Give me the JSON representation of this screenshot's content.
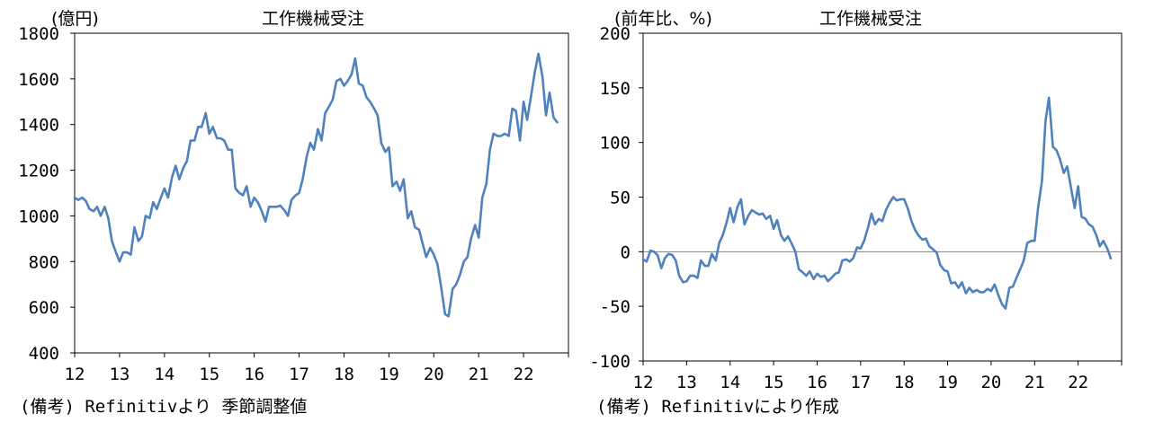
{
  "chart_data": [
    {
      "type": "line",
      "title": "工作機械受注",
      "ylabel": "(億円)",
      "ylim": [
        400,
        1800
      ],
      "yticks": [
        "400",
        "600",
        "800",
        "1000",
        "1200",
        "1400",
        "1600",
        "1800"
      ],
      "xlim": [
        12,
        23
      ],
      "xticks": [
        "12",
        "13",
        "14",
        "15",
        "16",
        "17",
        "18",
        "19",
        "20",
        "21",
        "22"
      ],
      "note": "(備考) Refinitivより 季節調整値",
      "color": "#4f81bd",
      "points": [
        [
          12.0,
          1080
        ],
        [
          12.08,
          1070
        ],
        [
          12.17,
          1080
        ],
        [
          12.25,
          1065
        ],
        [
          12.33,
          1030
        ],
        [
          12.42,
          1020
        ],
        [
          12.5,
          1040
        ],
        [
          12.58,
          1000
        ],
        [
          12.67,
          1040
        ],
        [
          12.75,
          990
        ],
        [
          12.83,
          890
        ],
        [
          12.92,
          840
        ],
        [
          13.0,
          800
        ],
        [
          13.08,
          840
        ],
        [
          13.17,
          840
        ],
        [
          13.25,
          830
        ],
        [
          13.33,
          950
        ],
        [
          13.42,
          890
        ],
        [
          13.5,
          910
        ],
        [
          13.58,
          1000
        ],
        [
          13.67,
          990
        ],
        [
          13.75,
          1060
        ],
        [
          13.83,
          1030
        ],
        [
          13.92,
          1080
        ],
        [
          14.0,
          1120
        ],
        [
          14.08,
          1080
        ],
        [
          14.17,
          1170
        ],
        [
          14.25,
          1220
        ],
        [
          14.33,
          1160
        ],
        [
          14.42,
          1210
        ],
        [
          14.5,
          1240
        ],
        [
          14.58,
          1330
        ],
        [
          14.67,
          1330
        ],
        [
          14.75,
          1390
        ],
        [
          14.83,
          1390
        ],
        [
          14.92,
          1450
        ],
        [
          15.0,
          1360
        ],
        [
          15.08,
          1390
        ],
        [
          15.17,
          1340
        ],
        [
          15.25,
          1340
        ],
        [
          15.33,
          1330
        ],
        [
          15.42,
          1290
        ],
        [
          15.5,
          1290
        ],
        [
          15.58,
          1120
        ],
        [
          15.67,
          1100
        ],
        [
          15.75,
          1090
        ],
        [
          15.83,
          1130
        ],
        [
          15.92,
          1040
        ],
        [
          16.0,
          1080
        ],
        [
          16.08,
          1060
        ],
        [
          16.17,
          1020
        ],
        [
          16.25,
          975
        ],
        [
          16.33,
          1040
        ],
        [
          16.42,
          1040
        ],
        [
          16.5,
          1040
        ],
        [
          16.58,
          1045
        ],
        [
          16.67,
          1025
        ],
        [
          16.75,
          1000
        ],
        [
          16.83,
          1070
        ],
        [
          16.92,
          1090
        ],
        [
          17.0,
          1100
        ],
        [
          17.08,
          1160
        ],
        [
          17.17,
          1260
        ],
        [
          17.25,
          1320
        ],
        [
          17.33,
          1290
        ],
        [
          17.42,
          1380
        ],
        [
          17.5,
          1330
        ],
        [
          17.58,
          1450
        ],
        [
          17.67,
          1480
        ],
        [
          17.75,
          1510
        ],
        [
          17.83,
          1590
        ],
        [
          17.92,
          1600
        ],
        [
          18.0,
          1570
        ],
        [
          18.08,
          1590
        ],
        [
          18.17,
          1620
        ],
        [
          18.25,
          1690
        ],
        [
          18.33,
          1580
        ],
        [
          18.42,
          1570
        ],
        [
          18.5,
          1520
        ],
        [
          18.58,
          1500
        ],
        [
          18.67,
          1470
        ],
        [
          18.75,
          1440
        ],
        [
          18.83,
          1320
        ],
        [
          18.92,
          1280
        ],
        [
          19.0,
          1300
        ],
        [
          19.08,
          1130
        ],
        [
          19.17,
          1150
        ],
        [
          19.25,
          1110
        ],
        [
          19.33,
          1160
        ],
        [
          19.42,
          990
        ],
        [
          19.5,
          1020
        ],
        [
          19.58,
          950
        ],
        [
          19.67,
          940
        ],
        [
          19.75,
          880
        ],
        [
          19.83,
          820
        ],
        [
          19.92,
          860
        ],
        [
          20.0,
          830
        ],
        [
          20.08,
          790
        ],
        [
          20.17,
          680
        ],
        [
          20.25,
          570
        ],
        [
          20.33,
          560
        ],
        [
          20.42,
          680
        ],
        [
          20.5,
          700
        ],
        [
          20.58,
          740
        ],
        [
          20.67,
          800
        ],
        [
          20.75,
          820
        ],
        [
          20.83,
          900
        ],
        [
          20.92,
          960
        ],
        [
          21.0,
          905
        ],
        [
          21.08,
          1080
        ],
        [
          21.17,
          1140
        ],
        [
          21.25,
          1290
        ],
        [
          21.33,
          1360
        ],
        [
          21.42,
          1350
        ],
        [
          21.5,
          1350
        ],
        [
          21.58,
          1360
        ],
        [
          21.67,
          1350
        ],
        [
          21.75,
          1470
        ],
        [
          21.83,
          1460
        ],
        [
          21.92,
          1330
        ],
        [
          22.0,
          1500
        ],
        [
          22.08,
          1420
        ],
        [
          22.17,
          1530
        ],
        [
          22.25,
          1630
        ],
        [
          22.33,
          1710
        ],
        [
          22.42,
          1610
        ],
        [
          22.5,
          1440
        ],
        [
          22.58,
          1540
        ],
        [
          22.67,
          1430
        ],
        [
          22.75,
          1410
        ]
      ]
    },
    {
      "type": "line",
      "title": "工作機械受注",
      "ylabel": "(前年比、%)",
      "ylim": [
        -100,
        200
      ],
      "yticks": [
        "-100",
        "-50",
        "0",
        "50",
        "100",
        "150",
        "200"
      ],
      "xlim": [
        12,
        23
      ],
      "xticks": [
        "12",
        "13",
        "14",
        "15",
        "16",
        "17",
        "18",
        "19",
        "20",
        "21",
        "22"
      ],
      "note": "(備考) Refinitivにより作成",
      "color": "#4f81bd",
      "zero_line": true,
      "points": [
        [
          12.0,
          -7
        ],
        [
          12.08,
          -9
        ],
        [
          12.17,
          1
        ],
        [
          12.25,
          0
        ],
        [
          12.33,
          -3
        ],
        [
          12.42,
          -15
        ],
        [
          12.5,
          -6
        ],
        [
          12.58,
          -2
        ],
        [
          12.67,
          -3
        ],
        [
          12.75,
          -8
        ],
        [
          12.83,
          -22
        ],
        [
          12.92,
          -28
        ],
        [
          13.0,
          -27
        ],
        [
          13.08,
          -22
        ],
        [
          13.17,
          -22
        ],
        [
          13.25,
          -24
        ],
        [
          13.33,
          -8
        ],
        [
          13.42,
          -13
        ],
        [
          13.5,
          -13
        ],
        [
          13.58,
          -2
        ],
        [
          13.67,
          -8
        ],
        [
          13.75,
          8
        ],
        [
          13.83,
          15
        ],
        [
          13.92,
          27
        ],
        [
          14.0,
          40
        ],
        [
          14.08,
          27
        ],
        [
          14.17,
          41
        ],
        [
          14.25,
          48
        ],
        [
          14.33,
          25
        ],
        [
          14.42,
          33
        ],
        [
          14.5,
          38
        ],
        [
          14.58,
          36
        ],
        [
          14.67,
          34
        ],
        [
          14.75,
          35
        ],
        [
          14.83,
          30
        ],
        [
          14.92,
          33
        ],
        [
          15.0,
          21
        ],
        [
          15.08,
          29
        ],
        [
          15.17,
          15
        ],
        [
          15.25,
          10
        ],
        [
          15.33,
          14
        ],
        [
          15.42,
          7
        ],
        [
          15.5,
          0
        ],
        [
          15.58,
          -16
        ],
        [
          15.67,
          -19
        ],
        [
          15.75,
          -22
        ],
        [
          15.83,
          -18
        ],
        [
          15.92,
          -25
        ],
        [
          16.0,
          -20
        ],
        [
          16.08,
          -23
        ],
        [
          16.17,
          -22
        ],
        [
          16.25,
          -27
        ],
        [
          16.33,
          -24
        ],
        [
          16.42,
          -20
        ],
        [
          16.5,
          -19
        ],
        [
          16.58,
          -8
        ],
        [
          16.67,
          -7
        ],
        [
          16.75,
          -9
        ],
        [
          16.83,
          -6
        ],
        [
          16.92,
          4
        ],
        [
          17.0,
          3
        ],
        [
          17.08,
          10
        ],
        [
          17.17,
          22
        ],
        [
          17.25,
          35
        ],
        [
          17.33,
          25
        ],
        [
          17.42,
          30
        ],
        [
          17.5,
          28
        ],
        [
          17.58,
          38
        ],
        [
          17.67,
          45
        ],
        [
          17.75,
          50
        ],
        [
          17.83,
          47
        ],
        [
          17.92,
          48
        ],
        [
          18.0,
          48
        ],
        [
          18.08,
          40
        ],
        [
          18.17,
          28
        ],
        [
          18.25,
          20
        ],
        [
          18.33,
          15
        ],
        [
          18.42,
          11
        ],
        [
          18.5,
          12
        ],
        [
          18.58,
          5
        ],
        [
          18.67,
          2
        ],
        [
          18.75,
          -1
        ],
        [
          18.83,
          -12
        ],
        [
          18.92,
          -17
        ],
        [
          19.0,
          -18
        ],
        [
          19.08,
          -29
        ],
        [
          19.17,
          -28
        ],
        [
          19.25,
          -33
        ],
        [
          19.33,
          -28
        ],
        [
          19.42,
          -38
        ],
        [
          19.5,
          -33
        ],
        [
          19.58,
          -37
        ],
        [
          19.67,
          -35
        ],
        [
          19.75,
          -37
        ],
        [
          19.83,
          -37
        ],
        [
          19.92,
          -34
        ],
        [
          20.0,
          -36
        ],
        [
          20.08,
          -30
        ],
        [
          20.17,
          -40
        ],
        [
          20.25,
          -48
        ],
        [
          20.33,
          -52
        ],
        [
          20.42,
          -33
        ],
        [
          20.5,
          -32
        ],
        [
          20.58,
          -24
        ],
        [
          20.67,
          -16
        ],
        [
          20.75,
          -8
        ],
        [
          20.83,
          8
        ],
        [
          20.92,
          10
        ],
        [
          21.0,
          10
        ],
        [
          21.08,
          40
        ],
        [
          21.17,
          65
        ],
        [
          21.25,
          120
        ],
        [
          21.33,
          141
        ],
        [
          21.42,
          96
        ],
        [
          21.5,
          93
        ],
        [
          21.58,
          85
        ],
        [
          21.67,
          72
        ],
        [
          21.75,
          78
        ],
        [
          21.83,
          60
        ],
        [
          21.92,
          40
        ],
        [
          22.0,
          60
        ],
        [
          22.08,
          32
        ],
        [
          22.17,
          30
        ],
        [
          22.25,
          25
        ],
        [
          22.33,
          23
        ],
        [
          22.42,
          15
        ],
        [
          22.5,
          5
        ],
        [
          22.58,
          10
        ],
        [
          22.67,
          3
        ],
        [
          22.75,
          -6
        ]
      ]
    }
  ]
}
